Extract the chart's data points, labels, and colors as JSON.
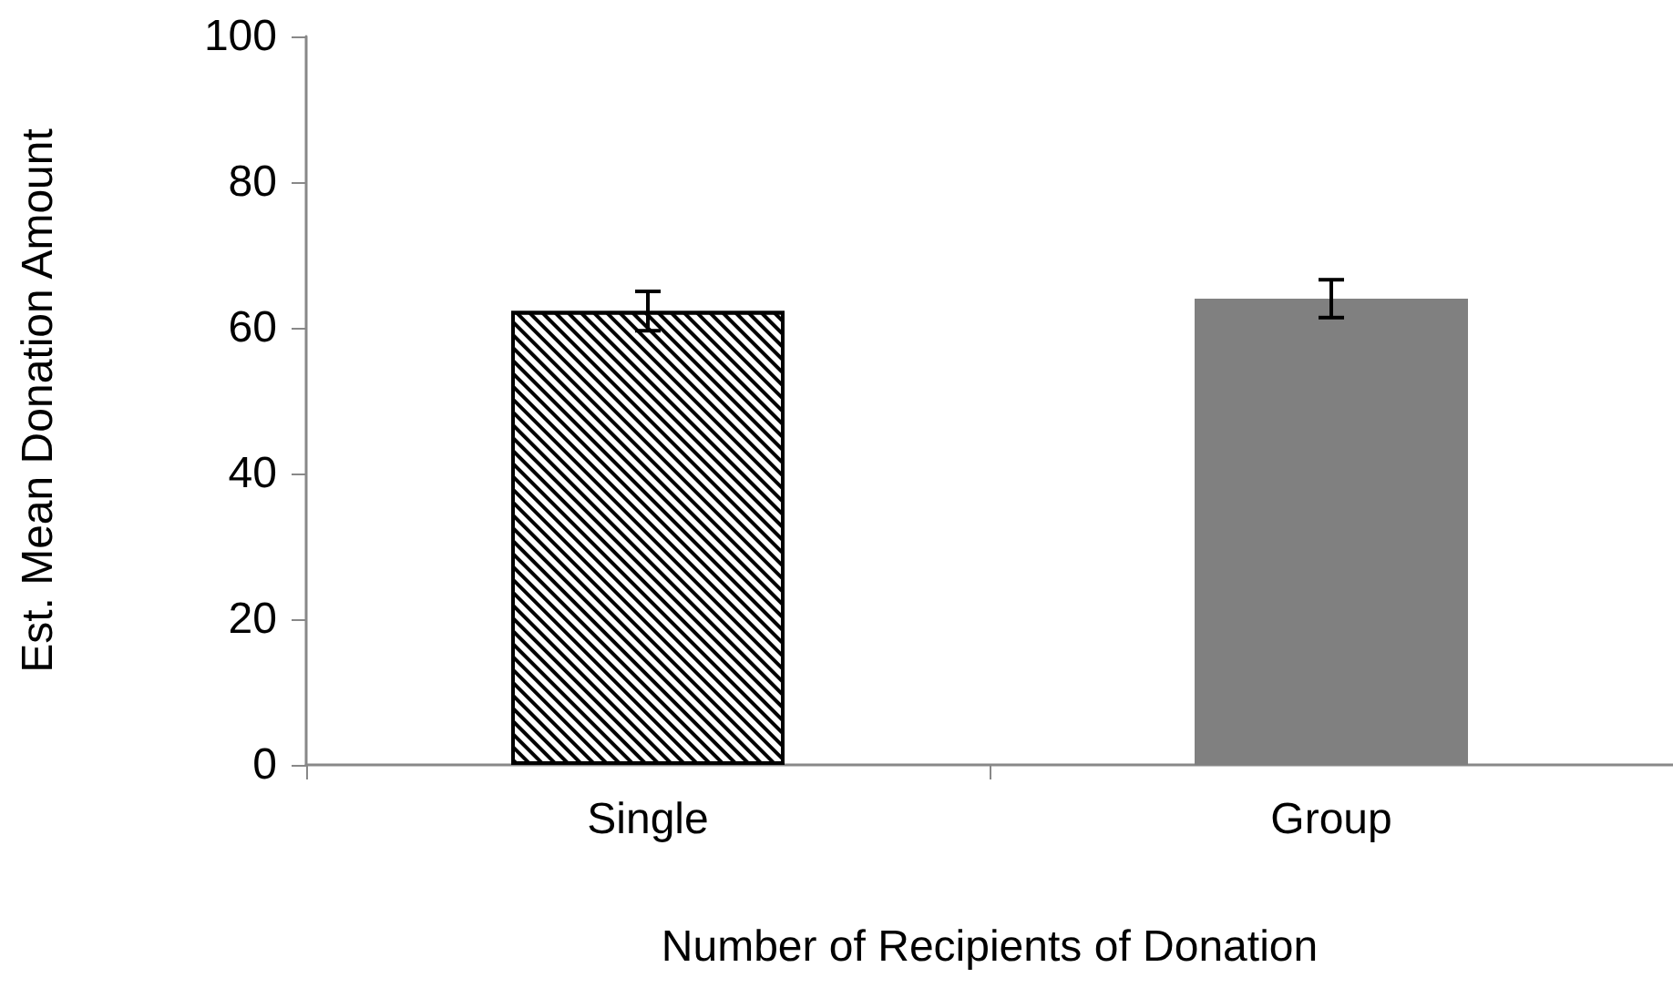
{
  "chart_data": {
    "type": "bar",
    "xlabel": "Number of Recipients of Donation",
    "ylabel": "Est. Mean Donation Amount",
    "categories": [
      "Single",
      "Group"
    ],
    "values": [
      62.3,
      64
    ],
    "errors": [
      2.7,
      2.6
    ],
    "colors": [
      "#ffffff",
      "#808080"
    ],
    "ylim": [
      0,
      100
    ],
    "yticks": [
      0,
      20,
      40,
      60,
      80,
      100
    ],
    "grid": false
  }
}
